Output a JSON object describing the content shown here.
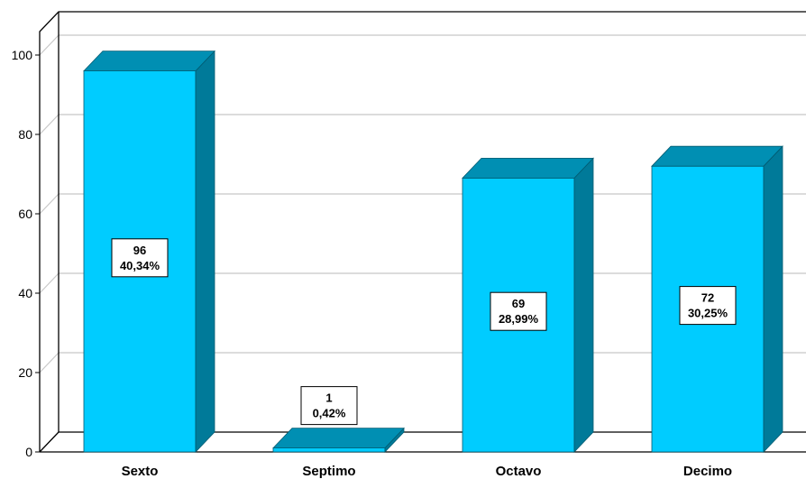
{
  "chart_data": {
    "type": "bar",
    "categories": [
      "Sexto",
      "Septimo",
      "Octavo",
      "Decimo"
    ],
    "values": [
      96,
      1,
      69,
      72
    ],
    "percent_labels": [
      "40,34%",
      "0,42%",
      "28,99%",
      "30,25%"
    ],
    "yticks": [
      "0",
      "20",
      "40",
      "60",
      "80",
      "100"
    ],
    "ylim": [
      0,
      100
    ],
    "grid": true,
    "legend": "none",
    "title": "",
    "xlabel": "",
    "ylabel": "",
    "colors": {
      "bar_front": "#00ccff",
      "bar_side": "#007a99",
      "bar_top": "#008fb3",
      "bar_edge": "#005a70",
      "grid": "#c8c8c8",
      "frame": "#000000"
    }
  }
}
